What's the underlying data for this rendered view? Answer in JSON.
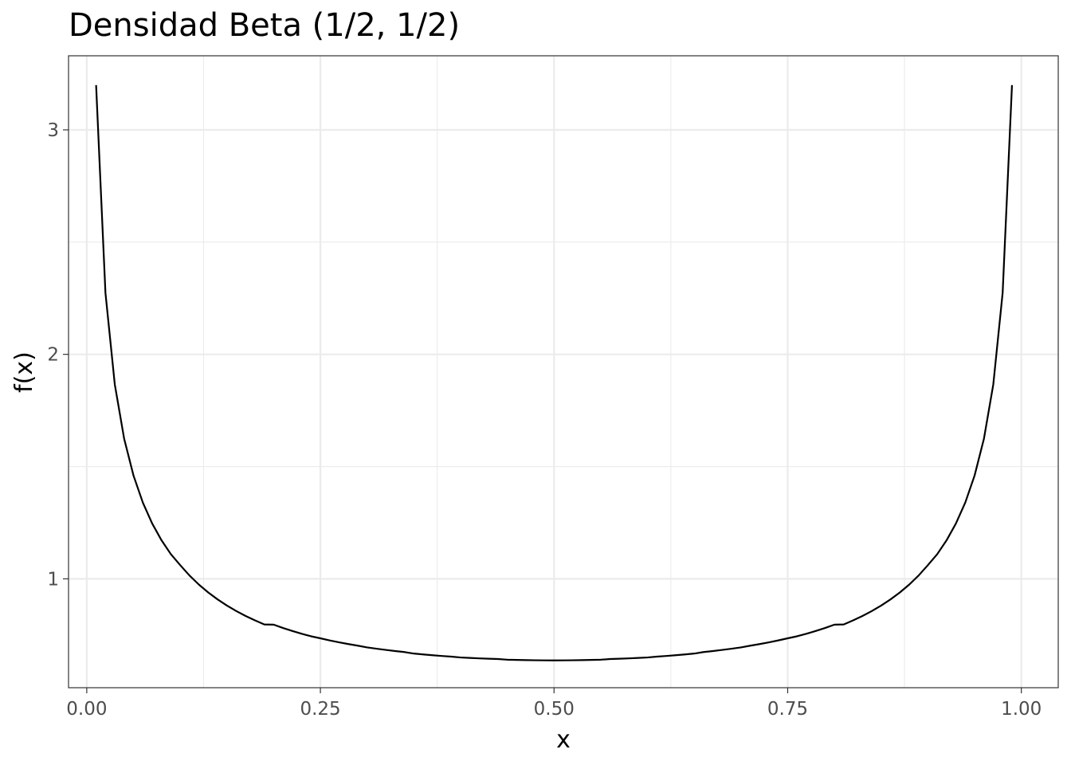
{
  "chart_data": {
    "type": "line",
    "title": "Densidad Beta (1/2, 1/2)",
    "xlabel": "x",
    "ylabel": "f(x)",
    "xlim": [
      -0.0195,
      1.0395
    ],
    "ylim": [
      0.515,
      3.33
    ],
    "x_ticks": [
      0,
      0.25,
      0.5,
      0.75,
      1
    ],
    "x_tick_labels": [
      "0.00",
      "0.25",
      "0.50",
      "0.75",
      "1.00"
    ],
    "y_ticks": [
      1,
      2,
      3
    ],
    "y_tick_labels": [
      "1",
      "2",
      "3"
    ],
    "grid": true,
    "colors": {
      "line": "#000000",
      "grid": "#ebebeb",
      "panel_border": "#333333"
    },
    "series": [
      {
        "x": [
          0.01,
          0.02,
          0.03,
          0.04,
          0.05,
          0.06,
          0.07,
          0.08,
          0.09,
          0.1,
          0.11,
          0.12,
          0.13,
          0.14,
          0.15,
          0.16,
          0.17,
          0.18,
          0.19,
          0.2,
          0.21,
          0.22,
          0.23,
          0.24,
          0.25,
          0.26,
          0.27,
          0.28,
          0.29,
          0.3,
          0.31,
          0.32,
          0.33,
          0.34,
          0.35,
          0.36,
          0.37,
          0.38,
          0.39,
          0.4,
          0.41,
          0.42,
          0.43,
          0.44,
          0.45,
          0.46,
          0.47,
          0.48,
          0.49,
          0.5,
          0.51,
          0.52,
          0.53,
          0.54,
          0.55,
          0.56,
          0.57,
          0.58,
          0.59,
          0.6,
          0.61,
          0.62,
          0.63,
          0.64,
          0.65,
          0.66,
          0.67,
          0.68,
          0.69,
          0.7,
          0.71,
          0.72,
          0.73,
          0.74,
          0.75,
          0.76,
          0.77,
          0.78,
          0.79,
          0.8,
          0.81,
          0.82,
          0.83,
          0.84,
          0.85,
          0.86,
          0.87,
          0.88,
          0.89,
          0.9,
          0.91,
          0.92,
          0.93,
          0.94,
          0.95,
          0.96,
          0.97,
          0.98,
          0.99
        ],
        "y": [
          3.1992,
          2.2737,
          1.8661,
          1.6244,
          1.4603,
          1.3397,
          1.2464,
          1.1716,
          1.1098,
          1.061,
          1.0144,
          0.9743,
          0.9392,
          0.9084,
          0.881,
          0.8565,
          0.8346,
          0.8148,
          0.7969,
          0.7958,
          0.7811,
          0.7676,
          0.7553,
          0.744,
          0.7351,
          0.7257,
          0.7172,
          0.7094,
          0.7022,
          0.6946,
          0.6887,
          0.6833,
          0.6783,
          0.6738,
          0.6671,
          0.6631,
          0.6596,
          0.6564,
          0.6535,
          0.6497,
          0.6476,
          0.6457,
          0.6441,
          0.6427,
          0.6398,
          0.6388,
          0.6379,
          0.6373,
          0.6368,
          0.6366,
          0.6368,
          0.6373,
          0.6379,
          0.6388,
          0.6398,
          0.6427,
          0.6441,
          0.6457,
          0.6476,
          0.6497,
          0.6535,
          0.6564,
          0.6596,
          0.6631,
          0.6671,
          0.6738,
          0.6783,
          0.6833,
          0.6887,
          0.6946,
          0.7022,
          0.7094,
          0.7172,
          0.7257,
          0.7351,
          0.744,
          0.7553,
          0.7676,
          0.7811,
          0.7958,
          0.7969,
          0.8148,
          0.8346,
          0.8565,
          0.881,
          0.9084,
          0.9392,
          0.9743,
          1.0144,
          1.061,
          1.1098,
          1.1716,
          1.2464,
          1.3397,
          1.4603,
          1.6244,
          1.8661,
          2.2737,
          3.1992
        ]
      }
    ]
  }
}
